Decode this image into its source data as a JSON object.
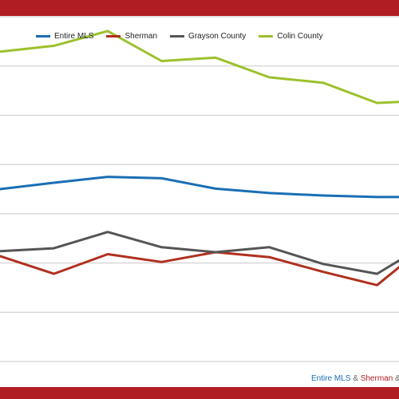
{
  "chart_data": {
    "type": "line",
    "title": "",
    "xlabel": "",
    "ylabel": "",
    "ylim": [
      0,
      7
    ],
    "x": [
      1,
      2,
      3,
      4,
      5,
      6,
      7,
      8,
      9,
      10
    ],
    "grid": true,
    "legend_position": "top-left",
    "series": [
      {
        "name": "Entire MLS",
        "color": "#1a6eb5",
        "values": [
          3.5,
          3.63,
          3.75,
          3.72,
          3.51,
          3.42,
          3.37,
          3.34,
          3.34,
          3.34
        ]
      },
      {
        "name": "Sherman",
        "color": "#b0301f",
        "values": [
          2.14,
          1.78,
          2.18,
          2.02,
          2.22,
          2.12,
          1.82,
          1.55,
          2.44,
          2.44
        ]
      },
      {
        "name": "Grayson County",
        "color": "#555555",
        "values": [
          2.24,
          2.3,
          2.63,
          2.32,
          2.22,
          2.32,
          1.98,
          1.78,
          2.44,
          2.44
        ]
      },
      {
        "name": "Colin County",
        "color": "#9dc02e",
        "values": [
          6.29,
          6.41,
          6.71,
          6.1,
          6.17,
          5.77,
          5.66,
          5.25,
          5.3,
          5.3
        ]
      }
    ]
  },
  "colors": {
    "band": "#b01e24",
    "grid": "#c8c8c8"
  },
  "footer": {
    "part1": "Entire MLS",
    "part2": " & ",
    "part3": "Sherman",
    "part4": " & ",
    "color1": "#1a6eb5",
    "color2": "#666666",
    "color3": "#b01e24"
  }
}
